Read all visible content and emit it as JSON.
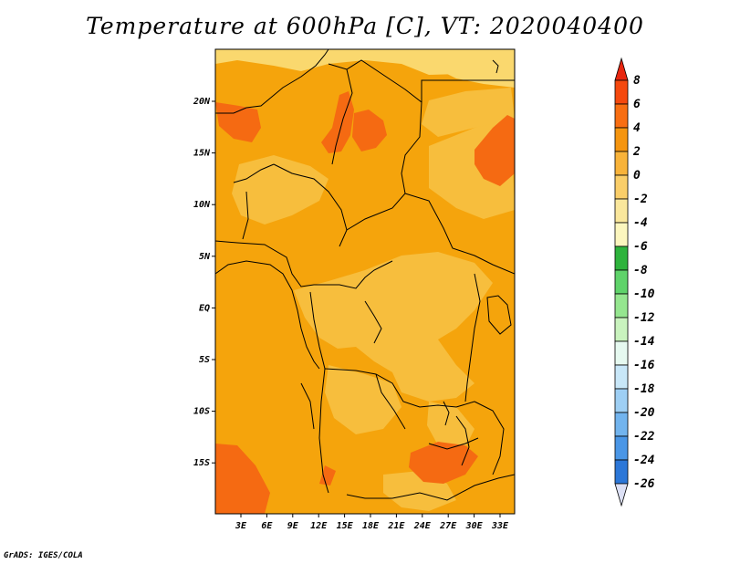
{
  "title": "Temperature at 600hPa [C], VT: 2020040400",
  "credit": "GrADS: IGES/COLA",
  "colors": {
    "base": "#F5A40C",
    "warm": "#FA8E10",
    "hot": "#F56A12",
    "cool": "#F7BE3D",
    "pale": "#FAD86E"
  },
  "map": {
    "lon_labels": [
      "3E",
      "6E",
      "9E",
      "12E",
      "15E",
      "18E",
      "21E",
      "24E",
      "27E",
      "30E",
      "33E"
    ],
    "lat_labels": [
      "20N",
      "15N",
      "10N",
      "5N",
      "EQ",
      "5S",
      "10S",
      "15S"
    ]
  },
  "colorbar": {
    "levels": [
      "8",
      "6",
      "4",
      "2",
      "0",
      "-2",
      "-4",
      "-6",
      "-8",
      "-10",
      "-12",
      "-14",
      "-16",
      "-18",
      "-20",
      "-22",
      "-24",
      "-26"
    ],
    "colors": [
      "#E8260F",
      "#F5490E",
      "#F86E12",
      "#F59510",
      "#F8B33A",
      "#FACE69",
      "#FAE79C",
      "#FCF6BE",
      "#2EB33C",
      "#5FD36A",
      "#95E68F",
      "#C9F3BE",
      "#E6F9F0",
      "#C8E7F8",
      "#9ECFF4",
      "#72B4EE",
      "#4A96E6",
      "#2C77D8",
      "#1A56C2",
      "#103BA4",
      "#0A227A",
      "#DCE0F5"
    ],
    "top_color": "#E8260F",
    "bottom_color": "#DCE0F5"
  }
}
